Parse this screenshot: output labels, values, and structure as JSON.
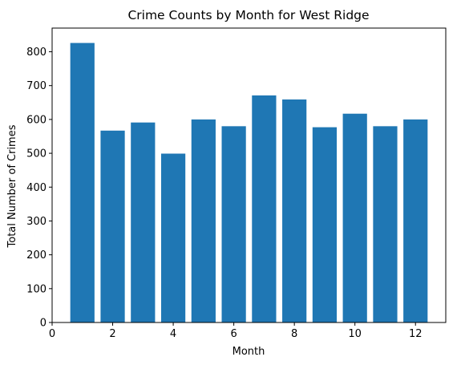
{
  "chart_data": {
    "type": "bar",
    "title": "Crime Counts by Month for West Ridge",
    "xlabel": "Month",
    "ylabel": "Total Number of Crimes",
    "x": [
      1,
      2,
      3,
      4,
      5,
      6,
      7,
      8,
      9,
      10,
      11,
      12
    ],
    "values": [
      826,
      567,
      591,
      499,
      600,
      580,
      671,
      659,
      577,
      617,
      580,
      600
    ],
    "xlim": [
      0,
      13
    ],
    "ylim": [
      0,
      870
    ],
    "xticks": [
      0,
      2,
      4,
      6,
      8,
      10,
      12
    ],
    "yticks": [
      0,
      100,
      200,
      300,
      400,
      500,
      600,
      700,
      800
    ],
    "bar_color": "#1f77b4",
    "grid": false,
    "legend": "none"
  }
}
